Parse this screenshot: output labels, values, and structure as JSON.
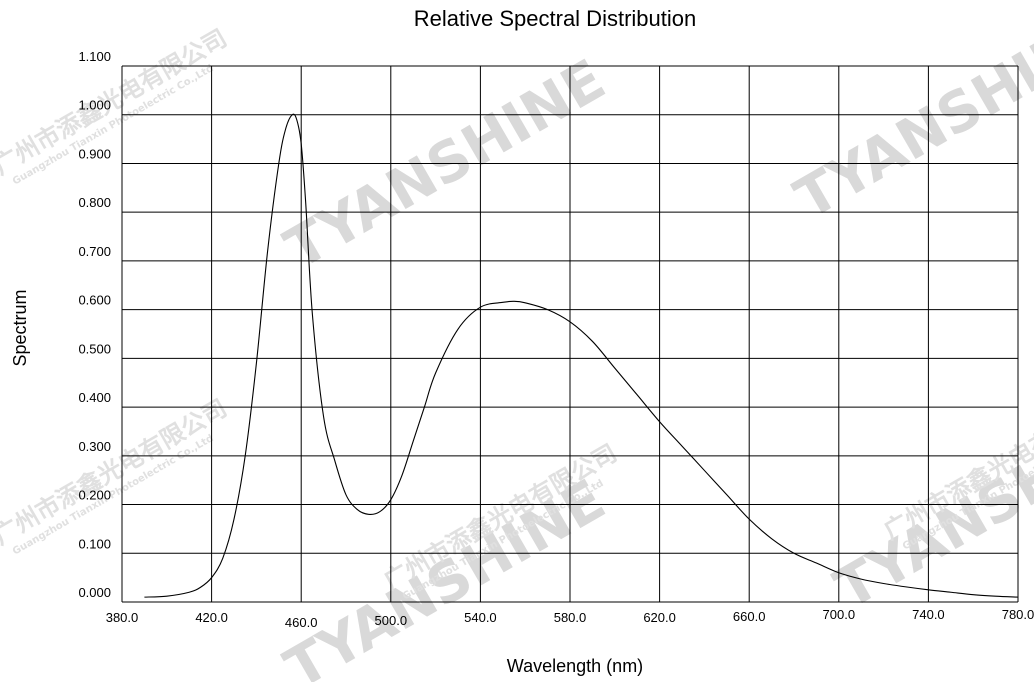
{
  "chart_data": {
    "type": "line",
    "title": "Relative Spectral Distribution",
    "xlabel": "Wavelength (nm)",
    "ylabel": "Spectrum",
    "xlim": [
      380,
      780
    ],
    "ylim": [
      0,
      1.1
    ],
    "grid": true,
    "x_ticks": [
      "380.0",
      "420.0",
      "460.0",
      "500.0",
      "540.0",
      "580.0",
      "620.0",
      "660.0",
      "700.0",
      "740.0",
      "780.0"
    ],
    "y_ticks": [
      "0.000",
      "0.100",
      "0.200",
      "0.300",
      "0.400",
      "0.500",
      "0.600",
      "0.700",
      "0.800",
      "0.900",
      "1.000",
      "1.100"
    ],
    "series": [
      {
        "color": "#000000",
        "x": [
          390,
          400,
          410,
          415,
          420,
          425,
          430,
          435,
          440,
          445,
          450,
          453,
          456,
          458,
          460,
          462,
          465,
          470,
          475,
          480,
          485,
          490,
          495,
          500,
          505,
          510,
          515,
          520,
          530,
          540,
          550,
          555,
          560,
          570,
          580,
          590,
          600,
          610,
          620,
          630,
          640,
          650,
          660,
          670,
          680,
          690,
          700,
          710,
          720,
          730,
          740,
          750,
          760,
          770,
          780
        ],
        "y": [
          0.01,
          0.012,
          0.02,
          0.03,
          0.05,
          0.09,
          0.17,
          0.3,
          0.49,
          0.72,
          0.9,
          0.97,
          1.0,
          0.99,
          0.94,
          0.82,
          0.59,
          0.38,
          0.29,
          0.22,
          0.19,
          0.18,
          0.185,
          0.21,
          0.26,
          0.33,
          0.4,
          0.47,
          0.56,
          0.605,
          0.615,
          0.617,
          0.614,
          0.6,
          0.575,
          0.535,
          0.48,
          0.425,
          0.37,
          0.32,
          0.27,
          0.22,
          0.17,
          0.13,
          0.1,
          0.08,
          0.06,
          0.047,
          0.038,
          0.031,
          0.025,
          0.02,
          0.015,
          0.012,
          0.01
        ]
      }
    ]
  },
  "watermark": {
    "brand": "TYANSHINE",
    "cn": "广州市添鑫光电有限公司",
    "en": "Guangzhou Tianxin Photoelectric Co.,Ltd"
  }
}
